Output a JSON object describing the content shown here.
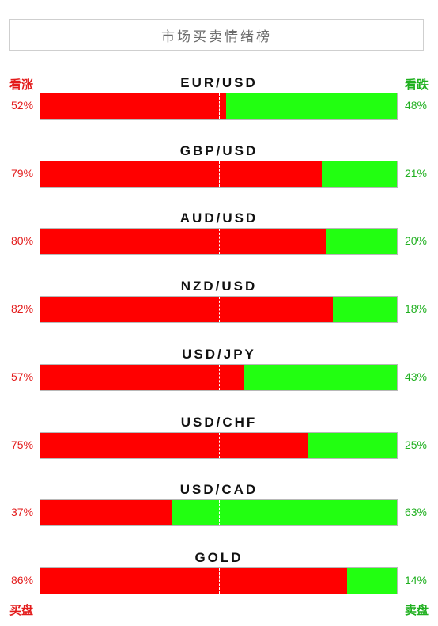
{
  "title": "市场买卖情绪榜",
  "labels": {
    "bullish": "看涨",
    "bearish": "看跌",
    "buy": "买盘",
    "sell": "卖盘"
  },
  "colors": {
    "buy": "#ff0000",
    "sell": "#22ff11",
    "buy_text": "#e31b1b",
    "sell_text": "#20b020"
  },
  "chart_data": {
    "type": "bar",
    "orientation": "horizontal-stacked-100",
    "title": "市场买卖情绪榜",
    "categories": [
      "EUR/USD",
      "GBP/USD",
      "AUD/USD",
      "NZD/USD",
      "USD/JPY",
      "USD/CHF",
      "USD/CAD",
      "GOLD"
    ],
    "series": [
      {
        "name": "看涨",
        "values": [
          52,
          79,
          80,
          82,
          57,
          75,
          37,
          86
        ]
      },
      {
        "name": "看跌",
        "values": [
          48,
          21,
          20,
          18,
          43,
          25,
          63,
          14
        ]
      }
    ],
    "buy_text": [
      "52%",
      "79%",
      "80%",
      "82%",
      "57%",
      "75%",
      "37%",
      "86%"
    ],
    "sell_text": [
      "48%",
      "21%",
      "20%",
      "18%",
      "43%",
      "25%",
      "63%",
      "14%"
    ],
    "xlim": [
      0,
      100
    ],
    "grid": false
  }
}
